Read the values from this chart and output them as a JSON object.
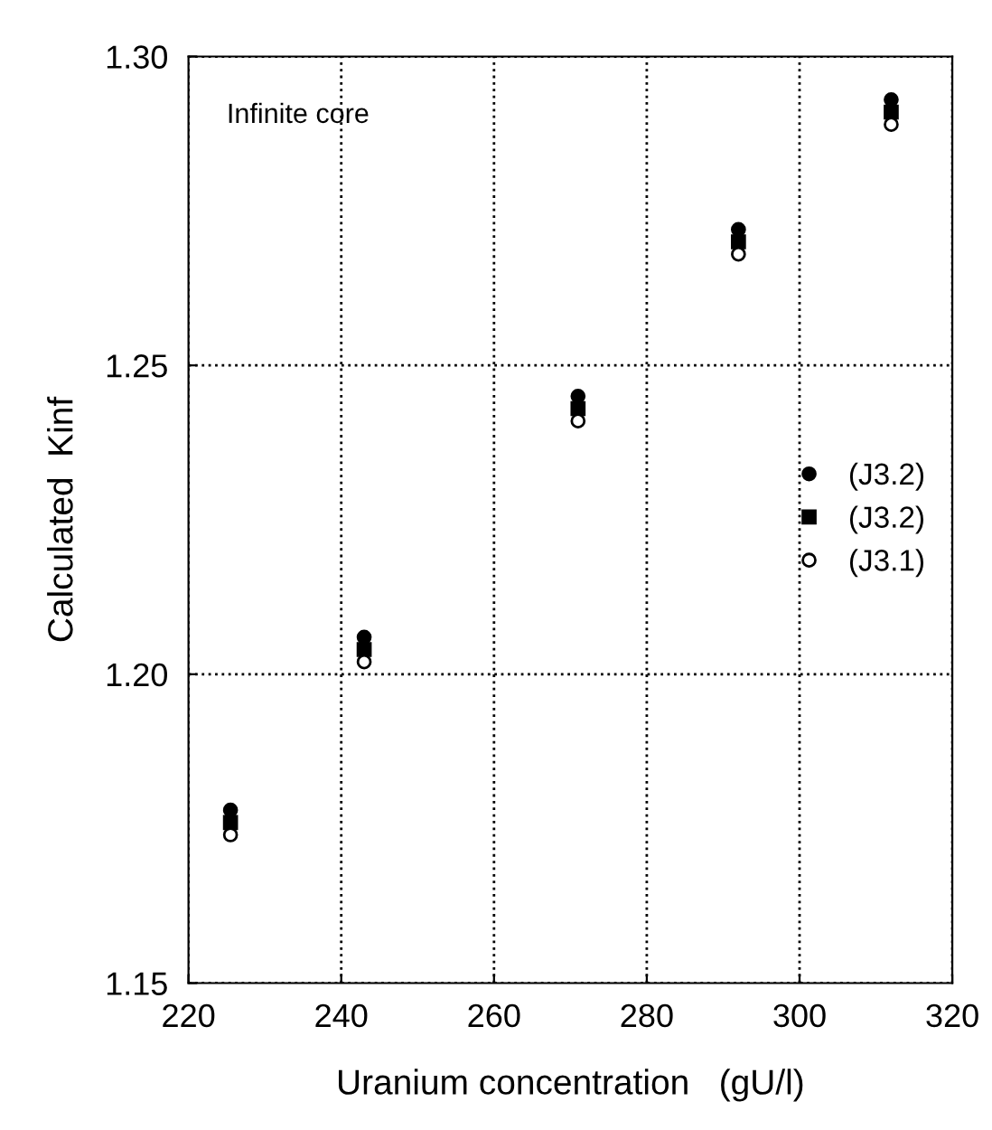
{
  "chart_data": {
    "type": "scatter",
    "xlabel": "Uranium concentration   (gU/l)",
    "ylabel": "Calculated  Kinf",
    "x": [
      225.5,
      243,
      271,
      292,
      312
    ],
    "series": [
      {
        "name": "(J3.2)",
        "color": "#000000",
        "marker": "circle",
        "values": [
          1.178,
          1.206,
          1.245,
          1.272,
          1.293
        ]
      },
      {
        "name": "(J3.2)",
        "color": "#000000",
        "marker": "square",
        "values": [
          1.176,
          1.204,
          1.243,
          1.27,
          1.291
        ]
      },
      {
        "name": "(J3.1)",
        "color": "#000000",
        "marker": "circle",
        "values": [
          1.174,
          1.202,
          1.241,
          1.268,
          1.289
        ]
      }
    ],
    "xlim": [
      220,
      320
    ],
    "xticks": [
      220,
      240,
      260,
      280,
      300,
      320
    ],
    "ylim": [
      1.15,
      1.3
    ],
    "yticks": [
      {
        "value": 1.15,
        "label": "1.15"
      },
      {
        "value": 1.2,
        "label": "1.20"
      },
      {
        "value": 1.25,
        "label": "1.25"
      },
      {
        "value": 1.3,
        "label": "1.30"
      }
    ],
    "grid": true,
    "legend": "center right",
    "annotations": [
      "Infinite core"
    ]
  }
}
